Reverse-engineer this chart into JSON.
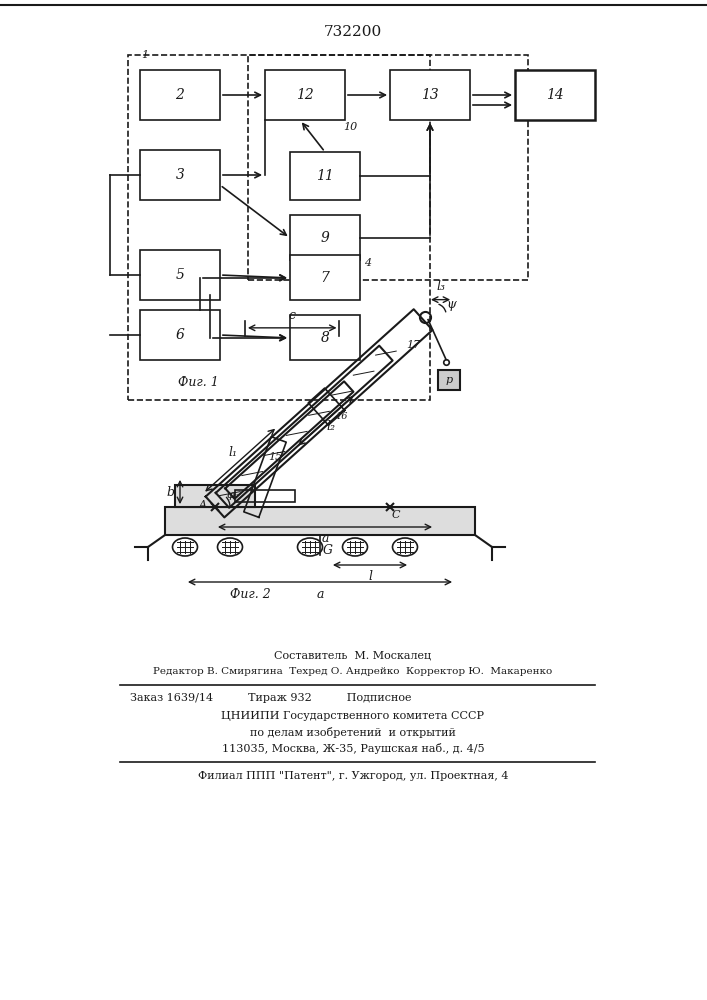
{
  "title": "732200",
  "fig1_label": "Фиг. 1",
  "fig2_label": "Фиг. 2",
  "bg_color": "#ffffff",
  "line_color": "#1a1a1a",
  "footer_lines": [
    "Составитель  М. Москалец",
    "Редактор В. Смирягина  Техред О. Андрейко  Корректор Ю.  Макаренко",
    "Заказ 1639/14          Тираж 932          Подписное",
    "ЦНИИПИ Государственного комитета СССР",
    "по делам изобретений  и открытий",
    "113035, Москва, Ж-35, Раушская наб., д. 4/5",
    "Филиал ППП \"Патент\", г. Ужгород, ул. Проектная, 4"
  ]
}
